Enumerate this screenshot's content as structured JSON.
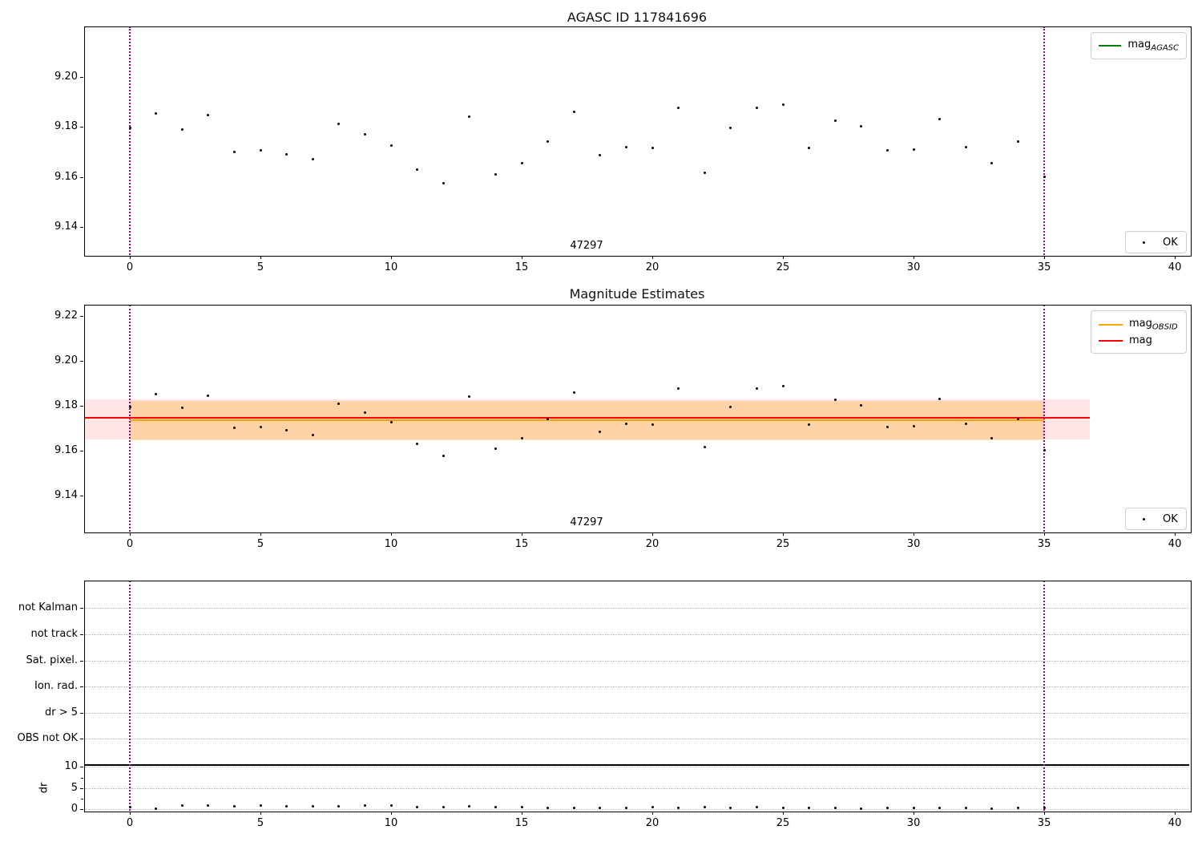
{
  "figure": {
    "top_plot": {
      "title": "AGASC ID 117841696",
      "legend": {
        "line_pre": "mag",
        "line_sub": "AGASC",
        "line_color": "#008000"
      },
      "ok_legend": {
        "label": "OK"
      },
      "annotation": "47297"
    },
    "middle_plot": {
      "title": "Magnitude Estimates",
      "legend": {
        "line1_pre": "mag",
        "line1_sub": "OBSID",
        "line1_color": "#FFA500",
        "line2_label": "mag",
        "line2_color": "#FF0000"
      },
      "ok_legend": {
        "label": "OK"
      },
      "annotation": "47297"
    },
    "bottom_plot": {
      "ylabel": "dr"
    }
  },
  "colors": {
    "vline": "#9b009b",
    "grid": "#b8b8b8",
    "marker": "#000000",
    "band_pink": "rgba(255,0,0,0.10)",
    "band_orange": "rgba(255,165,0,0.28)",
    "mag_line": "#FF0000",
    "obsid_line": "#FFA500",
    "agasc_line": "#008000",
    "threshold_line": "#000000"
  },
  "chart_data": [
    {
      "type": "scatter",
      "title": "AGASC ID 117841696",
      "series_name": "OK",
      "x": [
        0,
        1,
        2,
        3,
        4,
        5,
        6,
        7,
        8,
        9,
        10,
        11,
        12,
        13,
        14,
        15,
        16,
        17,
        18,
        19,
        20,
        21,
        22,
        23,
        24,
        25,
        26,
        27,
        28,
        29,
        30,
        31,
        32,
        33,
        34,
        35
      ],
      "y": [
        9.1795,
        9.1853,
        9.179,
        9.1845,
        9.17,
        9.1705,
        9.169,
        9.167,
        9.181,
        9.177,
        9.1725,
        9.163,
        9.1575,
        9.184,
        9.161,
        9.1655,
        9.174,
        9.1858,
        9.1685,
        9.172,
        9.1715,
        9.1875,
        9.1615,
        9.1795,
        9.1875,
        9.1888,
        9.1715,
        9.1825,
        9.1803,
        9.1705,
        9.171,
        9.183,
        9.172,
        9.1655,
        9.174,
        9.16
      ],
      "xlim": [
        -1.75,
        40.58
      ],
      "ylim": [
        9.1288,
        9.22
      ],
      "xticks": [
        {
          "v": 0,
          "label": "0"
        },
        {
          "v": 5,
          "label": "5"
        },
        {
          "v": 10,
          "label": "10"
        },
        {
          "v": 15,
          "label": "15"
        },
        {
          "v": 20,
          "label": "20"
        },
        {
          "v": 25,
          "label": "25"
        },
        {
          "v": 30,
          "label": "30"
        },
        {
          "v": 35,
          "label": "35"
        },
        {
          "v": 40,
          "label": "40"
        }
      ],
      "yticks": [
        {
          "v": 9.2,
          "label": "9.20"
        },
        {
          "v": 9.18,
          "label": "9.18"
        },
        {
          "v": 9.16,
          "label": "9.16"
        },
        {
          "v": 9.14,
          "label": "9.14"
        }
      ],
      "vlines": [
        0,
        35
      ],
      "legend_entries": [
        "mag_AGASC",
        "OK"
      ],
      "annotation": {
        "text": "47297",
        "x": 17.5
      }
    },
    {
      "type": "scatter",
      "title": "Magnitude Estimates",
      "series_name": "OK",
      "x": [
        0,
        1,
        2,
        3,
        4,
        5,
        6,
        7,
        8,
        9,
        10,
        11,
        12,
        13,
        14,
        15,
        16,
        17,
        18,
        19,
        20,
        21,
        22,
        23,
        24,
        25,
        26,
        27,
        28,
        29,
        30,
        31,
        32,
        33,
        34,
        35
      ],
      "y": [
        9.1795,
        9.1853,
        9.179,
        9.1845,
        9.17,
        9.1705,
        9.169,
        9.167,
        9.181,
        9.177,
        9.1725,
        9.163,
        9.1575,
        9.184,
        9.161,
        9.1655,
        9.174,
        9.1858,
        9.1685,
        9.172,
        9.1715,
        9.1875,
        9.1615,
        9.1795,
        9.1875,
        9.1888,
        9.1715,
        9.1825,
        9.1803,
        9.1705,
        9.171,
        9.183,
        9.172,
        9.1655,
        9.174,
        9.16
      ],
      "xlim": [
        -1.75,
        40.58
      ],
      "ylim": [
        9.1239,
        9.225
      ],
      "xticks": [
        {
          "v": 0,
          "label": "0"
        },
        {
          "v": 5,
          "label": "5"
        },
        {
          "v": 10,
          "label": "10"
        },
        {
          "v": 15,
          "label": "15"
        },
        {
          "v": 20,
          "label": "20"
        },
        {
          "v": 25,
          "label": "25"
        },
        {
          "v": 30,
          "label": "30"
        },
        {
          "v": 35,
          "label": "35"
        },
        {
          "v": 40,
          "label": "40"
        }
      ],
      "yticks": [
        {
          "v": 9.22,
          "label": "9.22"
        },
        {
          "v": 9.2,
          "label": "9.20"
        },
        {
          "v": 9.18,
          "label": "9.18"
        },
        {
          "v": 9.16,
          "label": "9.16"
        },
        {
          "v": 9.14,
          "label": "9.14"
        }
      ],
      "vlines": [
        0,
        35
      ],
      "mag_line": {
        "y": 9.1745,
        "x_range": [
          -1.75,
          36.75
        ]
      },
      "mag_band": {
        "y_range": [
          9.165,
          9.183
        ],
        "x_range": [
          -1.75,
          36.75
        ]
      },
      "obsid_line": {
        "y": 9.1735,
        "x_range": [
          0,
          35
        ]
      },
      "obsid_band": {
        "y_range": [
          9.1648,
          9.1823
        ],
        "x_range": [
          0,
          35
        ]
      },
      "legend_entries": [
        "mag_OBSID",
        "mag",
        "OK"
      ],
      "annotation": {
        "text": "47297",
        "x": 17.5
      }
    },
    {
      "type": "scatter",
      "title": "",
      "ylabel": "dr",
      "flag_categories": [
        "not Kalman",
        "not track",
        "Sat. pixel.",
        "Ion. rad.",
        "dr > 5",
        "OBS not OK"
      ],
      "x": [
        0,
        1,
        2,
        3,
        4,
        5,
        6,
        7,
        8,
        9,
        10,
        11,
        12,
        13,
        14,
        15,
        16,
        17,
        18,
        19,
        20,
        21,
        22,
        23,
        24,
        25,
        26,
        27,
        28,
        29,
        30,
        31,
        32,
        33,
        34,
        35
      ],
      "dr": [
        0.6,
        0.15,
        1.0,
        0.95,
        0.7,
        0.9,
        0.7,
        0.75,
        0.7,
        0.9,
        0.85,
        0.45,
        0.55,
        0.65,
        0.55,
        0.45,
        0.35,
        0.3,
        0.3,
        0.35,
        0.5,
        0.4,
        0.45,
        0.4,
        0.45,
        0.3,
        0.35,
        0.35,
        0.1,
        0.35,
        0.35,
        0.35,
        0.3,
        0.2,
        0.25,
        0.3
      ],
      "xlim": [
        -1.75,
        40.58
      ],
      "dr_ylim": [
        0,
        10
      ],
      "xticks": [
        {
          "v": 0,
          "label": "0"
        },
        {
          "v": 5,
          "label": "5"
        },
        {
          "v": 10,
          "label": "10"
        },
        {
          "v": 15,
          "label": "15"
        },
        {
          "v": 20,
          "label": "20"
        },
        {
          "v": 25,
          "label": "25"
        },
        {
          "v": 30,
          "label": "30"
        },
        {
          "v": 35,
          "label": "35"
        },
        {
          "v": 40,
          "label": "40"
        }
      ],
      "dr_ticks": [
        {
          "v": 10,
          "label": "10"
        },
        {
          "v": 5,
          "label": "5"
        },
        {
          "v": 0,
          "label": "0"
        }
      ],
      "dr_minor_ticks": [
        2.5,
        7.5
      ],
      "threshold_hline": 10.5,
      "vlines": [
        0,
        35
      ]
    }
  ]
}
